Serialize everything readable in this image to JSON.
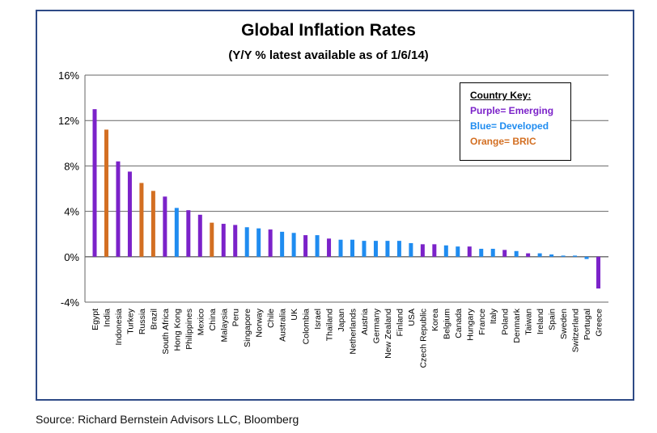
{
  "chart_data": {
    "type": "bar",
    "title": "Global Inflation Rates",
    "subtitle": "(Y/Y % latest available as of 1/6/14)",
    "ylim": [
      -4,
      16
    ],
    "yticks": [
      -4,
      0,
      4,
      8,
      12,
      16
    ],
    "ytick_labels": [
      "-4%",
      "0%",
      "4%",
      "8%",
      "12%",
      "16%"
    ],
    "xlabel": "",
    "ylabel": "",
    "grid": true,
    "categories": [
      "Egypt",
      "India",
      "Indonesia",
      "Turkey",
      "Russia",
      "Brazil",
      "South Africa",
      "Hong Kong",
      "Philippines",
      "Mexico",
      "China",
      "Malaysia",
      "Peru",
      "Singapore",
      "Norway",
      "Chile",
      "Australia",
      "UK",
      "Colombia",
      "Israel",
      "Thailand",
      "Japan",
      "Netherlands",
      "Austria",
      "Germany",
      "New Zealand",
      "Finland",
      "USA",
      "Czech Republic",
      "Korea",
      "Belgium",
      "Canada",
      "Hungary",
      "France",
      "Italy",
      "Poland",
      "Denmark",
      "Taiwan",
      "Ireland",
      "Spain",
      "Sweden",
      "Switzerland",
      "Portugal",
      "Greece"
    ],
    "values": [
      13.0,
      11.2,
      8.4,
      7.5,
      6.5,
      5.8,
      5.3,
      4.3,
      4.1,
      3.7,
      3.0,
      2.9,
      2.8,
      2.6,
      2.5,
      2.4,
      2.2,
      2.1,
      1.9,
      1.9,
      1.6,
      1.5,
      1.5,
      1.4,
      1.4,
      1.4,
      1.4,
      1.2,
      1.1,
      1.1,
      1.0,
      0.9,
      0.9,
      0.7,
      0.7,
      0.6,
      0.5,
      0.3,
      0.3,
      0.2,
      0.1,
      0.1,
      -0.2,
      -2.8
    ],
    "groups": [
      "emerging",
      "bric",
      "emerging",
      "emerging",
      "bric",
      "bric",
      "emerging",
      "developed",
      "emerging",
      "emerging",
      "bric",
      "emerging",
      "emerging",
      "developed",
      "developed",
      "emerging",
      "developed",
      "developed",
      "emerging",
      "developed",
      "emerging",
      "developed",
      "developed",
      "developed",
      "developed",
      "developed",
      "developed",
      "developed",
      "emerging",
      "emerging",
      "developed",
      "developed",
      "emerging",
      "developed",
      "developed",
      "emerging",
      "developed",
      "emerging",
      "developed",
      "developed",
      "developed",
      "developed",
      "developed",
      "emerging"
    ],
    "colors": {
      "emerging": "#7b22c9",
      "developed": "#1f8cf0",
      "bric": "#d36f22"
    },
    "legend": {
      "title": "Country Key:",
      "entries": [
        {
          "label": "Purple= Emerging",
          "group": "emerging"
        },
        {
          "label": "Blue= Developed",
          "group": "developed"
        },
        {
          "label": "Orange= BRIC",
          "group": "bric"
        }
      ],
      "position": "top-right"
    }
  },
  "source": "Source: Richard Bernstein Advisors LLC, Bloomberg"
}
